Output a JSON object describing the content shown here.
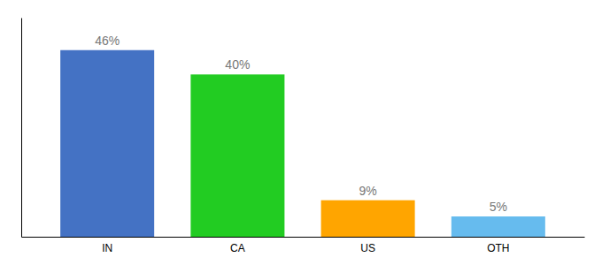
{
  "chart_data": {
    "type": "bar",
    "categories": [
      "IN",
      "CA",
      "US",
      "OTH"
    ],
    "values": [
      46,
      40,
      9,
      5
    ],
    "value_labels": [
      "46%",
      "40%",
      "9%",
      "5%"
    ],
    "colors": [
      "#4472c4",
      "#22cc22",
      "#ffa500",
      "#66bbee"
    ],
    "ylim": [
      0,
      54
    ],
    "yticks": [],
    "grid": false,
    "data_labels": true,
    "tick_labels": "x"
  }
}
